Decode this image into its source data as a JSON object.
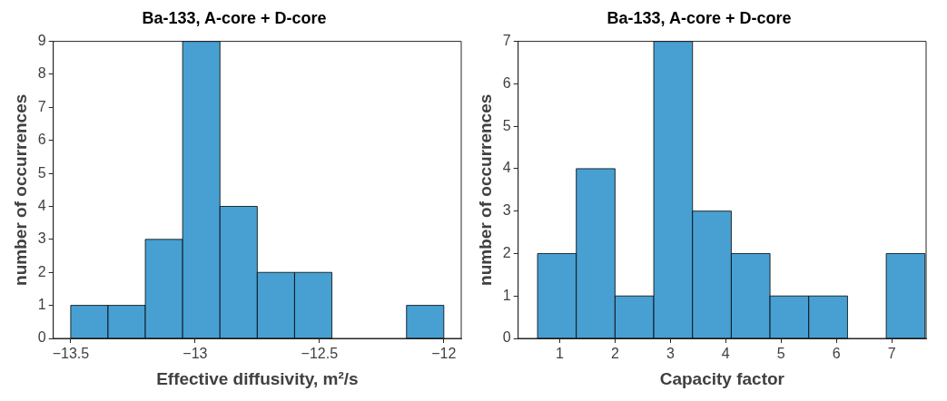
{
  "chart_data": [
    {
      "type": "histogram",
      "title": "Ba-133, A-core + D-core",
      "xlabel": "Effective diffusivity, m²/s",
      "ylabel": "number of occurrences",
      "color": "#48a0d2",
      "bins": [
        -13.5,
        -13.35,
        -13.2,
        -13.05,
        -12.9,
        -12.75,
        -12.6,
        -12.45,
        -12.3,
        -12.15,
        -12
      ],
      "values": [
        1,
        1,
        3,
        9,
        4,
        2,
        2,
        0,
        0,
        1
      ],
      "xlim": [
        -13.57,
        -11.93
      ],
      "xticks": [
        {
          "value": -13.5,
          "label": "−13.5"
        },
        {
          "value": -13,
          "label": "−13"
        },
        {
          "value": -12.5,
          "label": "−12.5"
        },
        {
          "value": -12,
          "label": "−12"
        }
      ],
      "ylim": [
        0,
        9
      ],
      "yticks": [
        0,
        1,
        2,
        3,
        4,
        5,
        6,
        7,
        8,
        9
      ],
      "grid": false,
      "legend": false
    },
    {
      "type": "histogram",
      "title": "Ba-133, A-core + D-core",
      "xlabel": "Capacity factor",
      "ylabel": "number of occurrences",
      "color": "#48a0d2",
      "bins": [
        0.6,
        1.3,
        2.0,
        2.7,
        3.4,
        4.1,
        4.8,
        5.5,
        6.2,
        6.9,
        7.6
      ],
      "values": [
        2,
        4,
        1,
        7,
        3,
        2,
        1,
        1,
        0,
        2
      ],
      "xlim": [
        0.25,
        7.62
      ],
      "xticks": [
        1,
        2,
        3,
        4,
        5,
        6,
        7
      ],
      "ylim": [
        0,
        7
      ],
      "yticks": [
        0,
        1,
        2,
        3,
        4,
        5,
        6,
        7
      ],
      "grid": false,
      "legend": false
    }
  ]
}
